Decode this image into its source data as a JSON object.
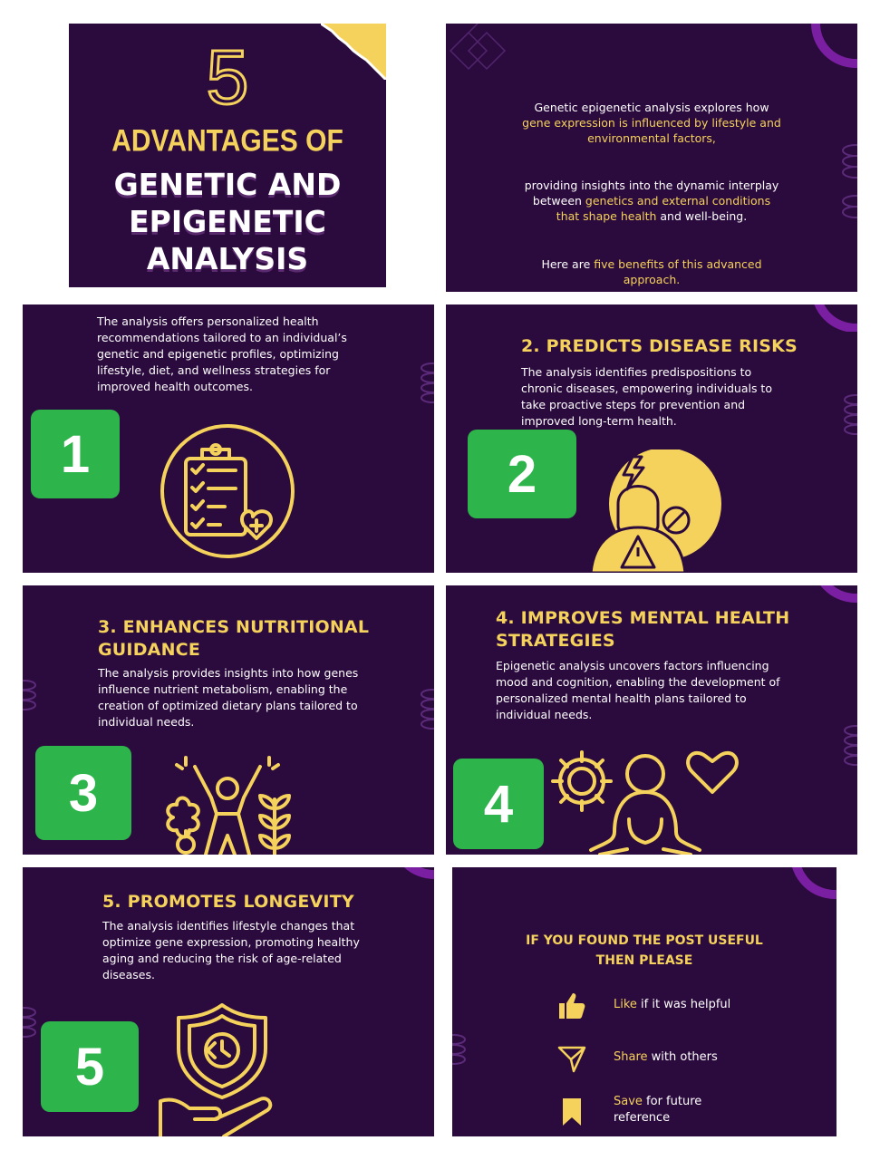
{
  "colors": {
    "panel_bg": "#2b0a3d",
    "accent_yellow": "#f5d25b",
    "badge_green": "#2db44a",
    "purple_deco": "#7b1fa2"
  },
  "cover": {
    "number": "5",
    "line1": "ADVANTAGES OF",
    "line2": "GENETIC AND",
    "line3": "EPIGENETIC",
    "line4": "ANALYSIS"
  },
  "intro": {
    "p1_a": "Genetic epigenetic analysis explores how",
    "p1_b": "gene expression is influenced by lifestyle and",
    "p1_c": "environmental factors,",
    "p2_a": "providing insights into the dynamic interplay",
    "p2_b1": "between ",
    "p2_b2": "genetics and external conditions",
    "p2_c1": "that shape health",
    "p2_c2": " and well-being.",
    "p3_a": "Here are ",
    "p3_b": "five benefits of this advanced",
    "p3_c": "approach."
  },
  "panels": [
    {
      "number": "1",
      "title": "",
      "desc": "The analysis offers personalized health recommendations tailored to an individual’s genetic and epigenetic profiles, optimizing lifestyle, diet, and wellness strategies for improved health outcomes.",
      "icon": "clipboard-checklist-heart-icon"
    },
    {
      "number": "2",
      "title": "2. PREDICTS DISEASE RISKS",
      "desc": "The analysis identifies predispositions to chronic diseases, empowering individuals to take proactive steps for prevention and improved long-term health.",
      "icon": "person-headache-warning-icon"
    },
    {
      "number": "3",
      "title": "3. ENHANCES NUTRITIONAL GUIDANCE",
      "desc": "The analysis provides insights into how genes influence nutrient metabolism, enabling the creation of optimized dietary plans tailored to individual needs.",
      "icon": "person-cheering-food-icon"
    },
    {
      "number": "4",
      "title": "4. IMPROVES MENTAL HEALTH STRATEGIES",
      "desc": "Epigenetic analysis uncovers factors influencing mood and cognition, enabling the development of personalized mental health plans tailored to individual needs.",
      "icon": "gear-meditation-heart-icon"
    },
    {
      "number": "5",
      "title": "5. PROMOTES LONGEVITY",
      "desc": "The analysis identifies lifestyle changes that optimize gene expression, promoting healthy aging and reducing the risk of age-related diseases.",
      "icon": "shield-hand-clock-icon"
    }
  ],
  "cta": {
    "heading_1": "IF YOU FOUND THE POST USEFUL",
    "heading_2": "THEN PLEASE",
    "like_a": "Like",
    "like_b": " if it was helpful",
    "share_a": "Share",
    "share_b": " with others",
    "save_a": "Save",
    "save_b": " for future",
    "save_c": "reference"
  }
}
